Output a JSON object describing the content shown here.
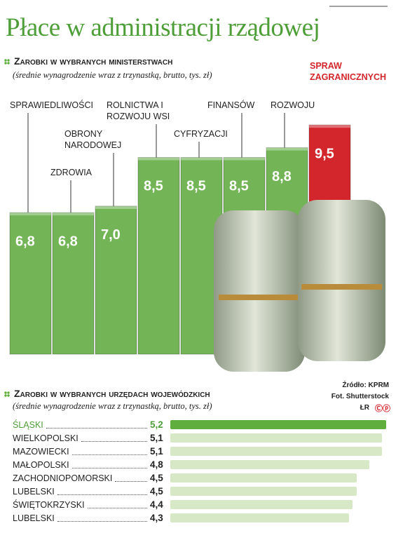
{
  "title": "Płace w administracji rządowej",
  "source": [
    "Źródło: KPRM",
    "Fot. Shutterstock",
    "ŁR"
  ],
  "chart_data": [
    {
      "type": "bar",
      "orientation": "vertical",
      "title": "Zarobki w wybranych ministerstwach",
      "subtitle": "(średnie wynagrodzenie wraz z trzynastką, brutto, tys. zł)",
      "categories": [
        "SPRAWIEDLIWOŚCI",
        "ZDROWIA",
        "OBRONY NARODOWEJ",
        "ROLNICTWA I ROZWOJU WSI",
        "CYFRYZACJI",
        "FINANSÓW",
        "ROZWOJU",
        "SPRAW ZAGRANICZNYCH"
      ],
      "values": [
        6.8,
        6.8,
        7.0,
        8.5,
        8.5,
        8.5,
        8.8,
        9.5
      ],
      "value_labels": [
        "6,8",
        "6,8",
        "7,0",
        "8,5",
        "8,5",
        "8,5",
        "8,8",
        "9,5"
      ],
      "colors": [
        "#72b456",
        "#72b456",
        "#72b456",
        "#72b456",
        "#72b456",
        "#72b456",
        "#72b456",
        "#d3262c"
      ]
    },
    {
      "type": "bar",
      "orientation": "horizontal",
      "title": "Zarobki w wybranych urzędach wojewódzkich",
      "subtitle": "(średnie wynagrodzenie wraz z trzynastką, brutto, tys. zł)",
      "categories": [
        "ŚLĄSKI",
        "WIELKOPOLSKI",
        "MAZOWIECKI",
        "MAŁOPOLSKI",
        "ZACHODNIOPOMORSKI",
        "LUBELSKI",
        "ŚWIĘTOKRZYSKI",
        "LUBELSKI"
      ],
      "values": [
        5.2,
        5.1,
        5.1,
        4.8,
        4.5,
        4.5,
        4.4,
        4.3
      ],
      "value_labels": [
        "5,2",
        "5,1",
        "5,1",
        "4,8",
        "4,5",
        "4,5",
        "4,4",
        "4,3"
      ],
      "colors": [
        "#5fae3e",
        "#d6e8c6",
        "#d6e8c6",
        "#d6e8c6",
        "#d6e8c6",
        "#d6e8c6",
        "#d6e8c6",
        "#d6e8c6"
      ]
    }
  ]
}
